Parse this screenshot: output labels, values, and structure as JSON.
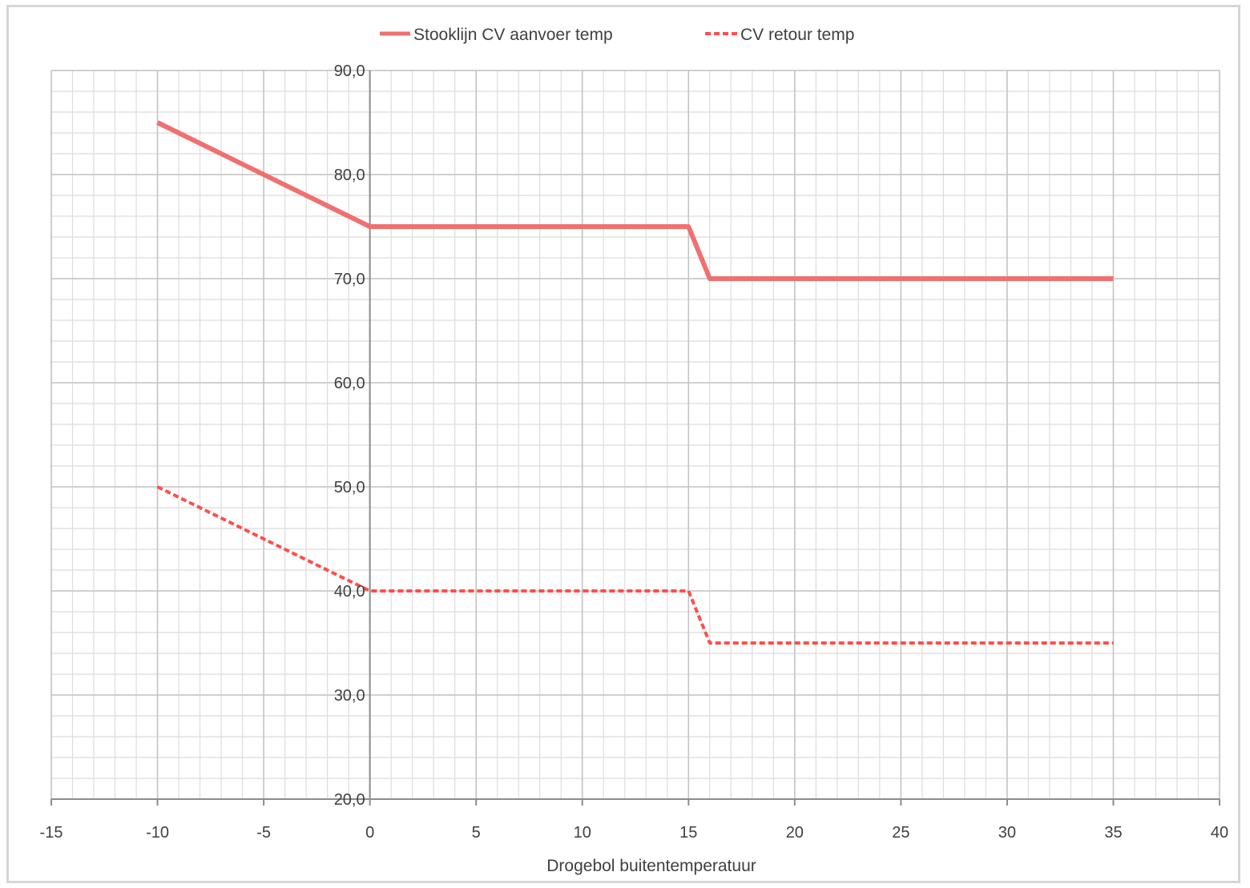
{
  "chart_data": {
    "type": "line",
    "xlabel": "Drogebol buitentemperatuur",
    "ylabel": "",
    "xlim": [
      -15,
      40
    ],
    "ylim": [
      20,
      90
    ],
    "x_ticks": [
      "-15",
      "-10",
      "-5",
      "0",
      "5",
      "10",
      "15",
      "20",
      "25",
      "30",
      "35",
      "40"
    ],
    "y_ticks": [
      "20,0",
      "30,0",
      "40,0",
      "50,0",
      "60,0",
      "70,0",
      "80,0",
      "90,0"
    ],
    "grid": true,
    "legend_position": "top",
    "series": [
      {
        "name": "Stooklijn CV aanvoer temp",
        "style": "solid",
        "color": "#f07070",
        "x": [
          -10,
          0,
          15,
          16,
          35
        ],
        "y": [
          85,
          75,
          75,
          70,
          70
        ]
      },
      {
        "name": "CV retour temp",
        "style": "dashed",
        "color": "#ff4d4d",
        "x": [
          -10,
          0,
          15,
          16,
          35
        ],
        "y": [
          50,
          40,
          40,
          35,
          35
        ]
      }
    ]
  }
}
